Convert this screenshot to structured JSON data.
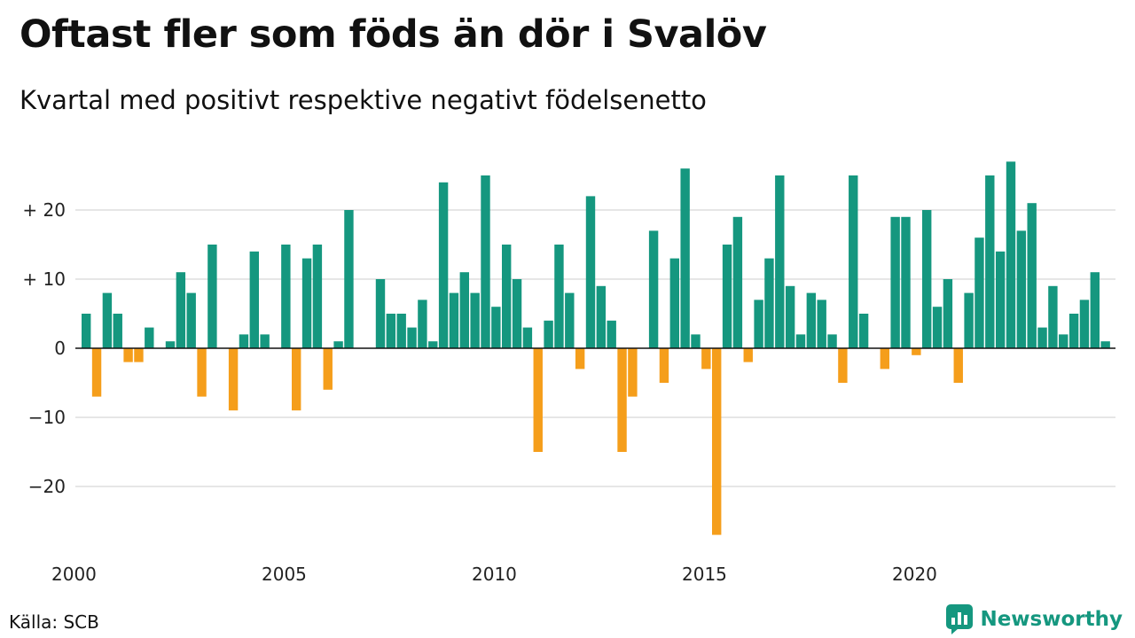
{
  "title": "Oftast fler som föds än dör i Svalöv",
  "subtitle": "Kvartal med positivt respektive negativt födelsenetto",
  "source": "Källa: SCB",
  "brand": "Newsworthy",
  "colors": {
    "positive": "#15977f",
    "negative": "#f59e1b",
    "grid": "#dddddd",
    "axis": "#111111",
    "brand": "#15977f"
  },
  "chart_data": {
    "type": "bar",
    "x_start_year": 2000,
    "quarters_per_year": 4,
    "x_ticks": [
      {
        "year": 2000,
        "label": "2000"
      },
      {
        "year": 2005,
        "label": "2005"
      },
      {
        "year": 2010,
        "label": "2010"
      },
      {
        "year": 2015,
        "label": "2015"
      },
      {
        "year": 2020,
        "label": "2020"
      }
    ],
    "y_ticks": [
      {
        "value": 20,
        "label": "+ 20"
      },
      {
        "value": 10,
        "label": "+ 10"
      },
      {
        "value": 0,
        "label": "0"
      },
      {
        "value": -10,
        "label": "−10"
      },
      {
        "value": -20,
        "label": "−20"
      }
    ],
    "ylim": [
      -28,
      28
    ],
    "grid": true,
    "values": [
      5,
      -7,
      8,
      5,
      -2,
      -2,
      3,
      0,
      1,
      11,
      8,
      -7,
      15,
      0,
      -9,
      2,
      14,
      2,
      0,
      15,
      -9,
      13,
      15,
      -6,
      1,
      20,
      0,
      0,
      10,
      5,
      5,
      3,
      7,
      1,
      24,
      8,
      11,
      8,
      25,
      6,
      15,
      10,
      3,
      -15,
      4,
      15,
      8,
      -3,
      22,
      9,
      4,
      -15,
      -7,
      0,
      17,
      -5,
      13,
      26,
      2,
      -3,
      -27,
      15,
      19,
      -2,
      7,
      13,
      25,
      9,
      2,
      8,
      7,
      2,
      -5,
      25,
      5,
      0,
      -3,
      19,
      19,
      -1,
      20,
      6,
      10,
      -5,
      8,
      16,
      25,
      14,
      27,
      17,
      21,
      3,
      9,
      2,
      5,
      7,
      11,
      1
    ]
  }
}
